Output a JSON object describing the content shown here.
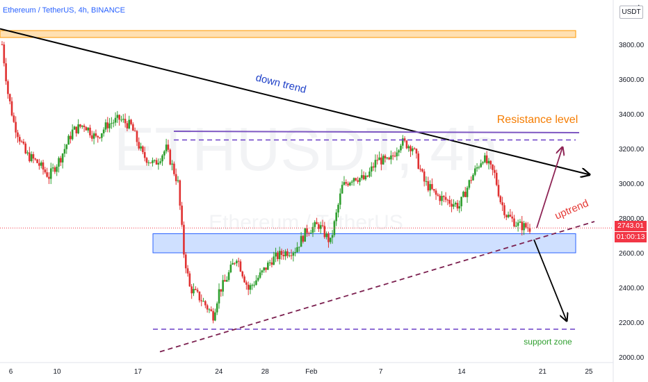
{
  "header": {
    "symbol": "Ethereum / TetherUS",
    "separator": ", ",
    "interval": "4h",
    "exchange": "BINANCE",
    "title_text": "Ethereum / TetherUS, 4h, BINANCE"
  },
  "price_axis": {
    "currency": "USDT",
    "top_partial_label": "4",
    "last_price": "2743.01",
    "countdown": "01:00:13"
  },
  "watermark": {
    "symbol": "ETHUSDT, 4h",
    "name": "Ethereum / TetherUS"
  },
  "colors": {
    "up_candle": "#26a69a",
    "green_candle": "#2e9e2e",
    "down_candle": "#e03131",
    "trend_black": "#000000",
    "resistance_purple": "#7e57c2",
    "dashed_purple": "#6a3ec7",
    "support_fill": "#cfe0ff",
    "support_border": "#2962ff",
    "top_zone_fill": "#ffe0b2",
    "top_zone_border": "#ff9800",
    "uptrend_dashed": "#7b1f4f",
    "arrow_maroon": "#8e2455",
    "label_blue": "#1e40c8",
    "label_orange": "#f57c00",
    "label_red": "#e53935",
    "label_green": "#2e9e2e",
    "price_tag": "#f23645"
  },
  "chart_data": {
    "type": "candlestick",
    "title": "Ethereum / TetherUS, 4h, BINANCE",
    "interval": "4h",
    "y_axis": {
      "ticks": [
        2000,
        2200,
        2400,
        2600,
        2800,
        3000,
        3200,
        3400,
        3600,
        3800
      ],
      "tick_labels": [
        "2000.00",
        "2200.00",
        "2400.00",
        "2600.00",
        "2800.00",
        "3000.00",
        "3200.00",
        "3400.00",
        "3600.00",
        "3800.00"
      ],
      "range": [
        1980,
        4010
      ]
    },
    "x_axis": {
      "tick_labels": [
        "6",
        "10",
        "17",
        "24",
        "28",
        "Feb",
        "7",
        "14",
        "21",
        "25"
      ],
      "tick_dates": [
        "2022-01-06",
        "2022-01-10",
        "2022-01-17",
        "2022-01-24",
        "2022-01-28",
        "2022-02-01",
        "2022-02-07",
        "2022-02-14",
        "2022-02-21",
        "2022-02-25"
      ]
    },
    "price_path": [
      [
        "2022-01-06",
        3800
      ],
      [
        "2022-01-06",
        3520
      ],
      [
        "2022-01-07",
        3350
      ],
      [
        "2022-01-08",
        3170
      ],
      [
        "2022-01-09",
        3120
      ],
      [
        "2022-01-10",
        3040
      ],
      [
        "2022-01-11",
        3150
      ],
      [
        "2022-01-12",
        3300
      ],
      [
        "2022-01-13",
        3340
      ],
      [
        "2022-01-14",
        3260
      ],
      [
        "2022-01-15",
        3340
      ],
      [
        "2022-01-16",
        3370
      ],
      [
        "2022-01-17",
        3330
      ],
      [
        "2022-01-18",
        3160
      ],
      [
        "2022-01-19",
        3110
      ],
      [
        "2022-01-20",
        3200
      ],
      [
        "2022-01-21",
        3000
      ],
      [
        "2022-01-21",
        2600
      ],
      [
        "2022-01-22",
        2400
      ],
      [
        "2022-01-23",
        2330
      ],
      [
        "2022-01-24",
        2240
      ],
      [
        "2022-01-24",
        2380
      ],
      [
        "2022-01-25",
        2430
      ],
      [
        "2022-01-26",
        2580
      ],
      [
        "2022-01-27",
        2390
      ],
      [
        "2022-01-28",
        2470
      ],
      [
        "2022-01-29",
        2560
      ],
      [
        "2022-01-30",
        2600
      ],
      [
        "2022-01-31",
        2620
      ],
      [
        "2022-02-01",
        2730
      ],
      [
        "2022-02-02",
        2760
      ],
      [
        "2022-02-03",
        2660
      ],
      [
        "2022-02-04",
        2980
      ],
      [
        "2022-02-05",
        3040
      ],
      [
        "2022-02-06",
        3020
      ],
      [
        "2022-02-07",
        3140
      ],
      [
        "2022-02-08",
        3120
      ],
      [
        "2022-02-09",
        3240
      ],
      [
        "2022-02-10",
        3210
      ],
      [
        "2022-02-11",
        3010
      ],
      [
        "2022-02-12",
        2930
      ],
      [
        "2022-02-13",
        2900
      ],
      [
        "2022-02-14",
        2870
      ],
      [
        "2022-02-15",
        3030
      ],
      [
        "2022-02-16",
        3150
      ],
      [
        "2022-02-17",
        3050
      ],
      [
        "2022-02-17",
        2900
      ],
      [
        "2022-02-18",
        2820
      ],
      [
        "2022-02-19",
        2760
      ],
      [
        "2022-02-20",
        2743.01
      ]
    ],
    "levels": {
      "top_zone": [
        3840,
        3880
      ],
      "resistance_line": 3300,
      "resistance_dashed": 3250,
      "support_zone": [
        2600,
        2710
      ],
      "support_dashed": 2160
    },
    "trendlines": {
      "down_trend": [
        [
          "2022-01-06",
          3890
        ],
        [
          "2022-02-25",
          3050
        ]
      ],
      "uptrend": [
        [
          "2022-01-20",
          2030
        ],
        [
          "2022-02-26",
          2780
        ]
      ]
    },
    "annotations": [
      {
        "text": "down trend",
        "color": "label_blue"
      },
      {
        "text": "Resistance level",
        "color": "label_orange"
      },
      {
        "text": "uptrend",
        "color": "label_red"
      },
      {
        "text": "support zone",
        "color": "label_green"
      }
    ],
    "last_price": 2743.01
  }
}
